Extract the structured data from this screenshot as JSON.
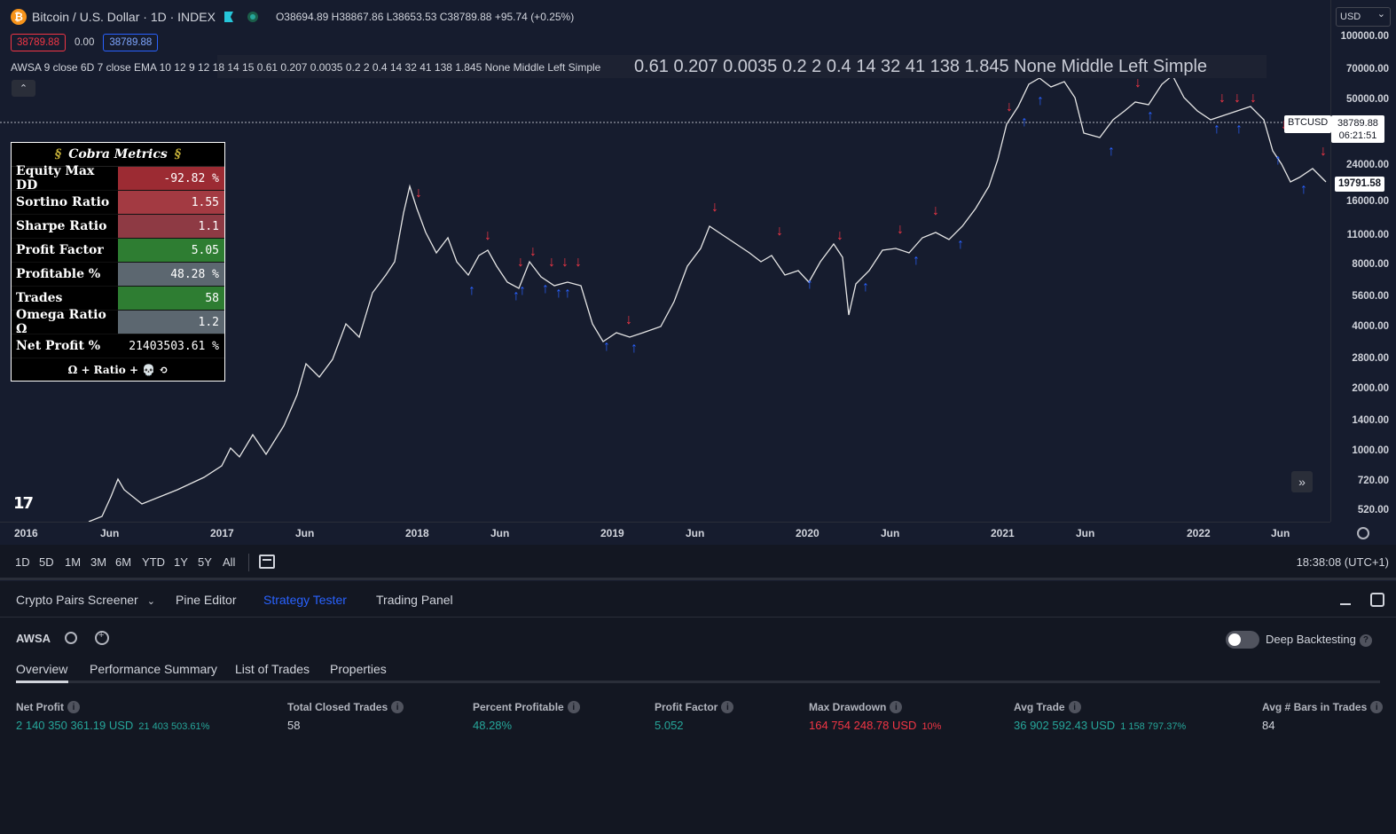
{
  "header": {
    "symbol_title": "Bitcoin / U.S. Dollar · 1D · INDEX",
    "ohlc": "O38694.89  H38867.86  L38653.53  C38789.88  +95.74 (+0.25%)",
    "bid": "38789.88",
    "spread": "0.00",
    "ask": "38789.88",
    "indicator": "AWSA 9 close 6D 7 close EMA 10 12 9 12 18 14 15 0.61 0.207 0.0035 0.2 2 0.4 14 32 41 138 1.845 None Middle Left Simple",
    "indicator_overlay": "0.61 0.207 0.0035 0.2 2 0.4 14 32 41 138 1.845 None Middle Left Simple"
  },
  "cobra": {
    "title": "Cobra Metrics",
    "rows": [
      {
        "label": "Equity Max DD",
        "value": "-92.82 %",
        "color": "#9c2b33"
      },
      {
        "label": "Sortino Ratio",
        "value": "1.55",
        "color": "#a33a42"
      },
      {
        "label": "Sharpe Ratio",
        "value": "1.1",
        "color": "#8e3a44"
      },
      {
        "label": "Profit Factor",
        "value": "5.05",
        "color": "#2e7d32"
      },
      {
        "label": "Profitable %",
        "value": "48.28 %",
        "color": "#5c6770"
      },
      {
        "label": "Trades",
        "value": "58",
        "color": "#2e7d32"
      },
      {
        "label": "Omega Ratio Ω",
        "value": "1.2",
        "color": "#5c6770"
      },
      {
        "label": "Net Profit %",
        "value": "21403503.61 %",
        "color": "#000000"
      }
    ],
    "footer": "Ω + Ratio + 💀 ⟲"
  },
  "price_axis": {
    "currency": "USD",
    "labels": [
      "100000.00",
      "70000.00",
      "50000.00",
      "24000.00",
      "16000.00",
      "11000.00",
      "8000.00",
      "5600.00",
      "4000.00",
      "2800.00",
      "2000.00",
      "1400.00",
      "1000.00",
      "720.00",
      "520.00"
    ],
    "ticker_tag": "BTCUSD",
    "last_price": "38789.88",
    "countdown": "06:21:51",
    "low_tag": "19791.58"
  },
  "time_axis": [
    "2016",
    "Jun",
    "2017",
    "Jun",
    "2018",
    "Jun",
    "2019",
    "Jun",
    "2020",
    "Jun",
    "2021",
    "Jun",
    "2022",
    "Jun"
  ],
  "range_bar": {
    "ranges": [
      "1D",
      "5D",
      "1M",
      "3M",
      "6M",
      "YTD",
      "1Y",
      "5Y",
      "All"
    ],
    "clock": "18:38:08 (UTC+1)"
  },
  "panel": {
    "tabs": [
      "Crypto Pairs Screener",
      "Pine Editor",
      "Strategy Tester",
      "Trading Panel"
    ],
    "strategy": "AWSA",
    "deep_backtesting": "Deep Backtesting",
    "subtabs": [
      "Overview",
      "Performance Summary",
      "List of Trades",
      "Properties"
    ],
    "metrics": [
      {
        "label": "Net Profit",
        "value": "2 140 350 361.19 USD",
        "sub": "21 403 503.61%",
        "tone": "green"
      },
      {
        "label": "Total Closed Trades",
        "value": "58",
        "sub": "",
        "tone": "white"
      },
      {
        "label": "Percent Profitable",
        "value": "48.28%",
        "sub": "",
        "tone": "green"
      },
      {
        "label": "Profit Factor",
        "value": "5.052",
        "sub": "",
        "tone": "green"
      },
      {
        "label": "Max Drawdown",
        "value": "164 754 248.78 USD",
        "sub": "10%",
        "tone": "red"
      },
      {
        "label": "Avg Trade",
        "value": "36 902 592.43 USD",
        "sub": "1 158 797.37%",
        "tone": "green"
      },
      {
        "label": "Avg # Bars in Trades",
        "value": "84",
        "sub": "",
        "tone": "white"
      }
    ]
  },
  "colors": {
    "up": "#26a69a",
    "down": "#f23645",
    "buy_arrow": "#2962ff",
    "sell_arrow": "#f23645"
  },
  "icons": [
    "bitcoin-icon",
    "flag-icon",
    "live-dot-icon",
    "chevron-up-icon",
    "snake-icon",
    "tradingview-logo-icon",
    "double-chevron-right-icon",
    "calendar-icon",
    "gear-icon",
    "alarm-add-icon",
    "minimize-icon",
    "maximize-icon",
    "help-icon"
  ]
}
